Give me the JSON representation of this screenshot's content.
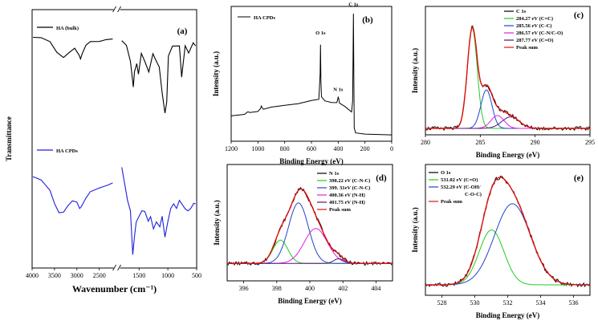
{
  "chart_data": [
    {
      "panel": "(a)",
      "type": "line",
      "xlabel": "Wavenumber (cm⁻¹)",
      "ylabel": "Transmittance",
      "xlim": [
        4000,
        500
      ],
      "x_ticks": [
        "4000",
        "3500",
        "3000",
        "2500",
        "1500",
        "1000",
        "500"
      ],
      "axis_break": "between 2200 and 1800",
      "series": [
        {
          "name": "HA (bulk)",
          "color": "#000000",
          "points": [
            [
              3980,
              0.895
            ],
            [
              3800,
              0.89
            ],
            [
              3600,
              0.878
            ],
            [
              3450,
              0.835
            ],
            [
              3300,
              0.815
            ],
            [
              3200,
              0.83
            ],
            [
              3050,
              0.85
            ],
            [
              2950,
              0.825
            ],
            [
              2920,
              0.81
            ],
            [
              2880,
              0.83
            ],
            [
              2800,
              0.86
            ],
            [
              2700,
              0.875
            ],
            [
              2500,
              0.878
            ],
            [
              2350,
              0.882
            ],
            [
              2200,
              0.885
            ],
            [
              1800,
              0.88
            ],
            [
              1720,
              0.86
            ],
            [
              1650,
              0.8
            ],
            [
              1600,
              0.7
            ],
            [
              1580,
              0.76
            ],
            [
              1540,
              0.79
            ],
            [
              1510,
              0.75
            ],
            [
              1460,
              0.83
            ],
            [
              1400,
              0.8
            ],
            [
              1330,
              0.76
            ],
            [
              1260,
              0.83
            ],
            [
              1200,
              0.8
            ],
            [
              1150,
              0.78
            ],
            [
              1100,
              0.68
            ],
            [
              1050,
              0.6
            ],
            [
              1020,
              0.64
            ],
            [
              990,
              0.82
            ],
            [
              920,
              0.86
            ],
            [
              800,
              0.86
            ],
            [
              760,
              0.74
            ],
            [
              700,
              0.86
            ],
            [
              640,
              0.83
            ],
            [
              560,
              0.87
            ],
            [
              520,
              0.86
            ]
          ]
        },
        {
          "name": "HA CPDs",
          "color": "#1f1fe0",
          "points": [
            [
              3980,
              0.355
            ],
            [
              3800,
              0.34
            ],
            [
              3600,
              0.3
            ],
            [
              3500,
              0.25
            ],
            [
              3400,
              0.215
            ],
            [
              3300,
              0.215
            ],
            [
              3200,
              0.24
            ],
            [
              3100,
              0.26
            ],
            [
              3000,
              0.255
            ],
            [
              2940,
              0.23
            ],
            [
              2900,
              0.24
            ],
            [
              2800,
              0.27
            ],
            [
              2700,
              0.295
            ],
            [
              2500,
              0.31
            ],
            [
              2300,
              0.32
            ],
            [
              2200,
              0.33
            ],
            [
              1800,
              0.39
            ],
            [
              1760,
              0.34
            ],
            [
              1700,
              0.26
            ],
            [
              1650,
              0.22
            ],
            [
              1610,
              0.05
            ],
            [
              1580,
              0.12
            ],
            [
              1550,
              0.18
            ],
            [
              1500,
              0.2
            ],
            [
              1450,
              0.22
            ],
            [
              1400,
              0.22
            ],
            [
              1340,
              0.18
            ],
            [
              1300,
              0.2
            ],
            [
              1250,
              0.15
            ],
            [
              1200,
              0.18
            ],
            [
              1140,
              0.16
            ],
            [
              1100,
              0.2
            ],
            [
              1050,
              0.12
            ],
            [
              1000,
              0.18
            ],
            [
              950,
              0.23
            ],
            [
              900,
              0.25
            ],
            [
              850,
              0.23
            ],
            [
              800,
              0.26
            ],
            [
              760,
              0.25
            ],
            [
              700,
              0.23
            ],
            [
              650,
              0.22
            ],
            [
              600,
              0.23
            ],
            [
              550,
              0.25
            ],
            [
              520,
              0.25
            ]
          ]
        }
      ]
    },
    {
      "panel": "(b)",
      "type": "line",
      "xlabel": "Binding Energy (eV)",
      "ylabel": "Intensity (a.u.)",
      "xlim": [
        1200,
        0
      ],
      "x_ticks": [
        "1200",
        "1000",
        "800",
        "600",
        "400",
        "200",
        "0"
      ],
      "annotations": [
        "O 1s",
        "N 1s",
        "C 1s"
      ],
      "series": [
        {
          "name": "HA CPDs",
          "color": "#000000",
          "points": [
            [
              1200,
              0.19
            ],
            [
              1100,
              0.2
            ],
            [
              1075,
              0.22
            ],
            [
              1060,
              0.21
            ],
            [
              1000,
              0.22
            ],
            [
              980,
              0.24
            ],
            [
              975,
              0.26
            ],
            [
              960,
              0.24
            ],
            [
              900,
              0.25
            ],
            [
              800,
              0.27
            ],
            [
              700,
              0.28
            ],
            [
              600,
              0.3
            ],
            [
              545,
              0.31
            ],
            [
              535,
              0.5
            ],
            [
              532,
              0.72
            ],
            [
              529,
              0.45
            ],
            [
              525,
              0.33
            ],
            [
              500,
              0.3
            ],
            [
              450,
              0.29
            ],
            [
              410,
              0.29
            ],
            [
              400,
              0.33
            ],
            [
              397,
              0.32
            ],
            [
              390,
              0.28
            ],
            [
              350,
              0.26
            ],
            [
              300,
              0.22
            ],
            [
              292,
              0.3
            ],
            [
              289,
              0.6
            ],
            [
              286,
              0.95
            ],
            [
              283,
              0.5
            ],
            [
              280,
              0.1
            ],
            [
              270,
              0.06
            ],
            [
              200,
              0.05
            ],
            [
              100,
              0.05
            ],
            [
              0,
              0.05
            ]
          ]
        }
      ]
    },
    {
      "panel": "(c)",
      "type": "line",
      "xlabel": "Binding Energy (eV)",
      "ylabel": "Intensity (a.u.)",
      "xlim": [
        280,
        295
      ],
      "x_ticks": [
        "280",
        "285",
        "290",
        "295"
      ],
      "legend": [
        "C 1s",
        "284.27 eV (C=C)",
        "285.56 eV (C-C)",
        "286.57 eV (C-N/C-O)",
        "287.77 eV (C=O)",
        "Peak sum"
      ],
      "series": [
        {
          "name": "284.27 eV (C=C)",
          "color": "#22cc22",
          "center": 284.27,
          "amp": 0.78,
          "sigma": 0.45
        },
        {
          "name": "285.56 eV (C-C)",
          "color": "#2244cc",
          "center": 285.56,
          "amp": 0.3,
          "sigma": 0.5
        },
        {
          "name": "286.57 eV (C-N/C-O)",
          "color": "#dd22dd",
          "center": 286.57,
          "amp": 0.1,
          "sigma": 0.6
        },
        {
          "name": "287.77 eV (C=O)",
          "color": "#551177",
          "center": 287.77,
          "amp": 0.09,
          "sigma": 0.8
        },
        {
          "name": "Peak sum",
          "color": "#e01010",
          "type": "sum",
          "baseline": 0.05
        }
      ]
    },
    {
      "panel": "(d)",
      "type": "line",
      "xlabel": "Binding Energy (eV)",
      "ylabel": "Intensity (a.u.)",
      "xlim": [
        395,
        405
      ],
      "x_ticks": [
        "396",
        "398",
        "400",
        "402",
        "404"
      ],
      "legend": [
        "N 1s",
        "398.22 eV (C-N-C)",
        "399. 31eV (C-N-C)",
        "400.36 eV (N-H)",
        "401.75 eV (N-H)",
        "Peak sum"
      ],
      "series": [
        {
          "name": "398.22 eV (C-N-C)",
          "color": "#22cc22",
          "center": 398.22,
          "amp": 0.2,
          "sigma": 0.45
        },
        {
          "name": "399. 31eV (C-N-C)",
          "color": "#2244cc",
          "center": 399.31,
          "amp": 0.52,
          "sigma": 0.6
        },
        {
          "name": "400.36 eV (N-H)",
          "color": "#dd22dd",
          "center": 400.36,
          "amp": 0.3,
          "sigma": 0.7
        },
        {
          "name": "401.75 eV (N-H)",
          "color": "#551177",
          "center": 401.75,
          "amp": 0.04,
          "sigma": 0.3
        },
        {
          "name": "Peak sum",
          "color": "#e01010",
          "type": "sum",
          "baseline": 0.15
        }
      ]
    },
    {
      "panel": "(e)",
      "type": "line",
      "xlabel": "Binding Energy (eV)",
      "ylabel": "Intensity (a.u.)",
      "xlim": [
        527,
        537
      ],
      "x_ticks": [
        "528",
        "530",
        "532",
        "534",
        "536"
      ],
      "legend": [
        "O 1s",
        "531.02 eV (C=O)",
        "532.29 eV (C-OH/ C-O-C)",
        "Peak sum"
      ],
      "series": [
        {
          "name": "531.02 eV (C=O)",
          "color": "#22cc22",
          "center": 531.02,
          "amp": 0.42,
          "sigma": 0.75
        },
        {
          "name": "532.29 eV (C-OH/ C-O-C)",
          "color": "#2244cc",
          "center": 532.29,
          "amp": 0.62,
          "sigma": 1.1
        },
        {
          "name": "Peak sum",
          "color": "#e01010",
          "type": "sum",
          "baseline": 0.08
        }
      ]
    }
  ]
}
